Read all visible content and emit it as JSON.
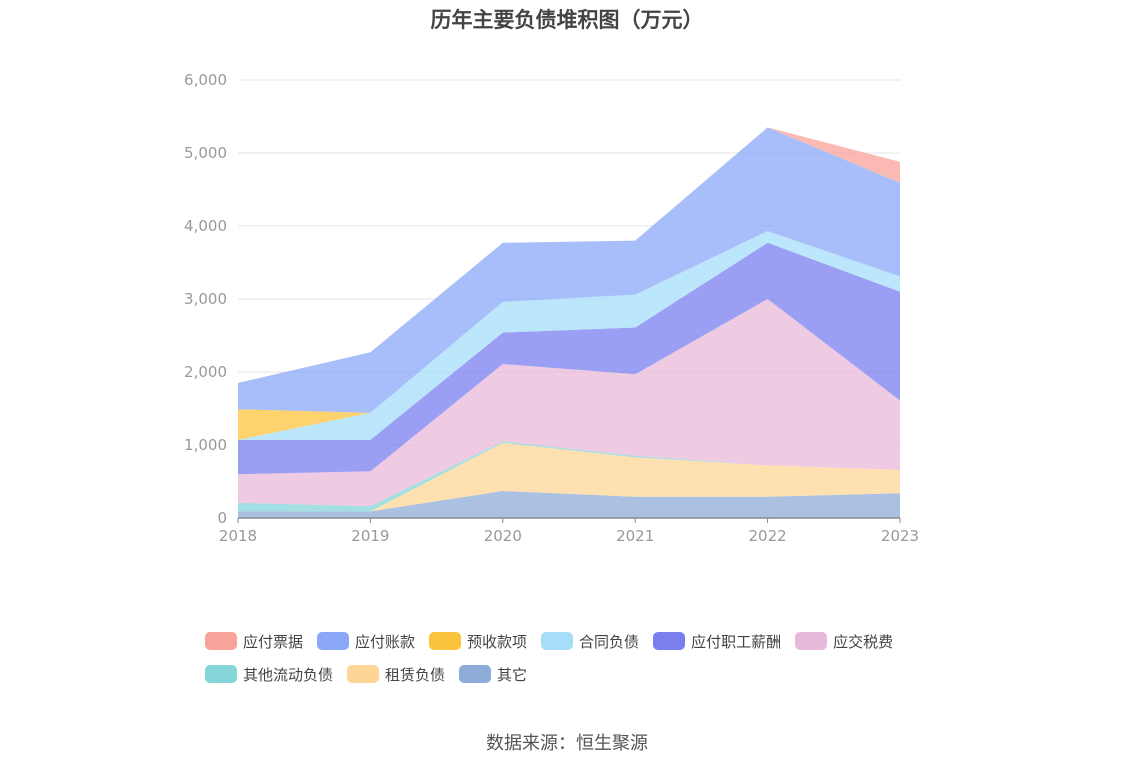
{
  "chart_data": {
    "type": "area",
    "title": "历年主要负债堆积图（万元）",
    "x": [
      "2018",
      "2019",
      "2020",
      "2021",
      "2022",
      "2023"
    ],
    "ylim": [
      0,
      6000
    ],
    "yticks": [
      0,
      1000,
      2000,
      3000,
      4000,
      5000,
      6000
    ],
    "ytick_labels": [
      "0",
      "1,000",
      "2,000",
      "3,000",
      "4,000",
      "5,000",
      "6,000"
    ],
    "stacked": true,
    "grid": true,
    "legend_position": "bottom",
    "series": [
      {
        "name": "应付票据",
        "color": "#f8a39a",
        "values": [
          0,
          0,
          0,
          0,
          0,
          290
        ]
      },
      {
        "name": "应付账款",
        "color": "#8ba8f8",
        "values": [
          360,
          830,
          810,
          740,
          1420,
          1280
        ]
      },
      {
        "name": "预收款项",
        "color": "#fbc43c",
        "values": [
          420,
          0,
          0,
          0,
          0,
          0
        ]
      },
      {
        "name": "合同负债",
        "color": "#a6defa",
        "values": [
          0,
          370,
          420,
          450,
          160,
          210
        ]
      },
      {
        "name": "应付职工薪酬",
        "color": "#7a7ff0",
        "values": [
          470,
          430,
          430,
          640,
          770,
          1490
        ]
      },
      {
        "name": "应交税费",
        "color": "#e8b8da",
        "values": [
          390,
          480,
          1060,
          1120,
          2280,
          950
        ]
      },
      {
        "name": "其他流动负债",
        "color": "#84d6d9",
        "values": [
          120,
          70,
          20,
          20,
          0,
          0
        ]
      },
      {
        "name": "租赁负债",
        "color": "#fdd697",
        "values": [
          0,
          0,
          660,
          540,
          430,
          320
        ]
      },
      {
        "name": "其它",
        "color": "#8eacd8",
        "values": [
          90,
          90,
          370,
          290,
          290,
          340
        ]
      }
    ]
  },
  "source": "数据来源：恒生聚源"
}
